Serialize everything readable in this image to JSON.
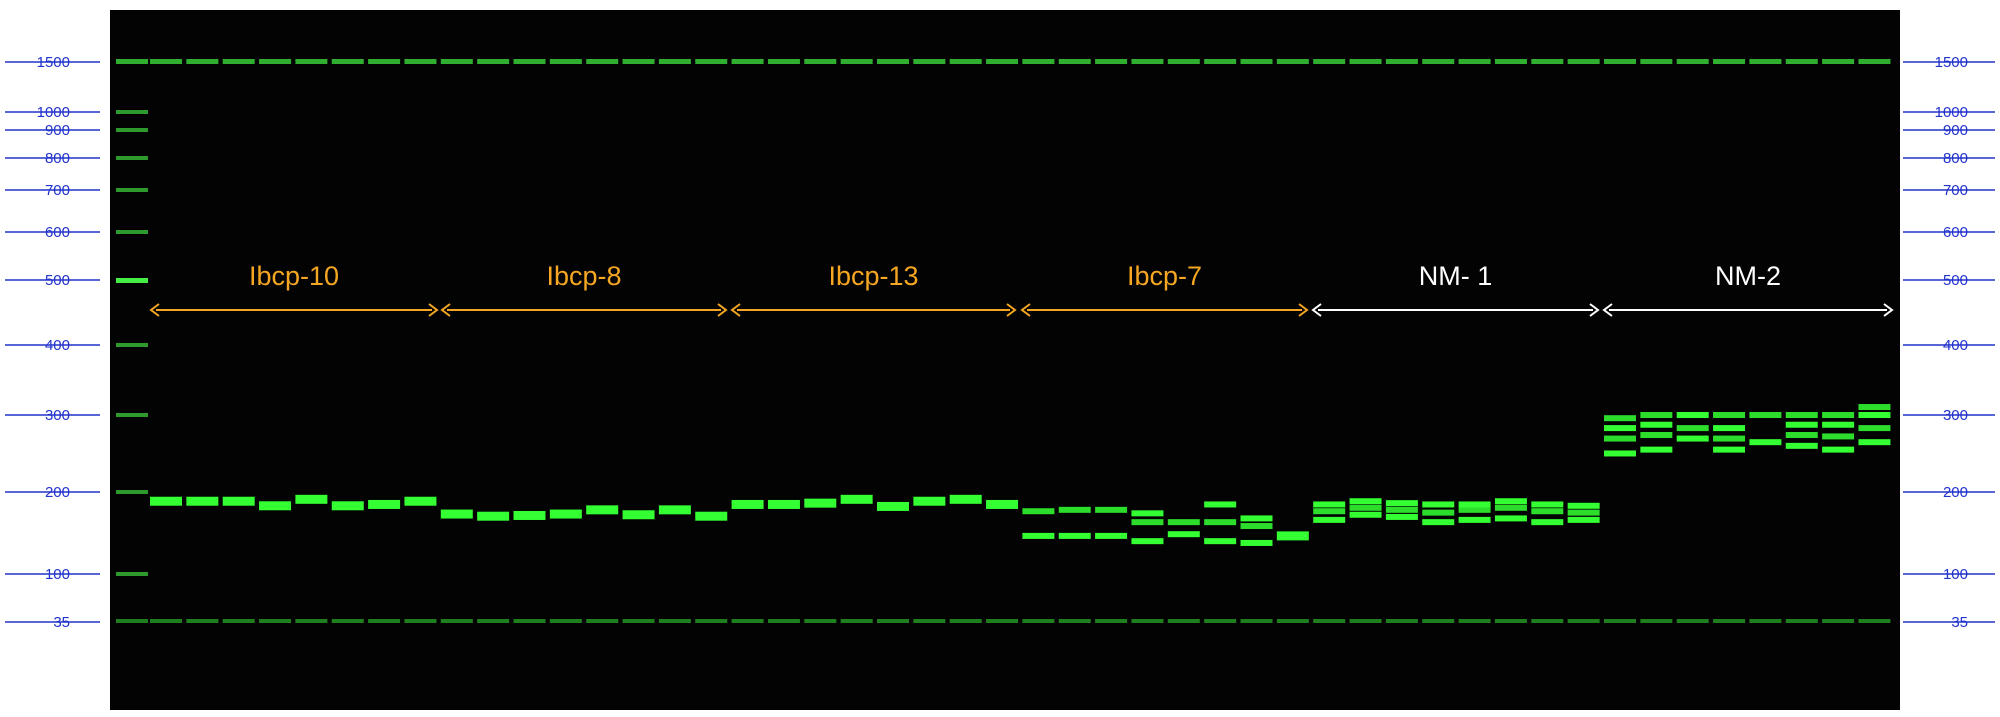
{
  "ladder": {
    "labels": [
      "1500",
      "1000",
      "900",
      "800",
      "700",
      "600",
      "500",
      "400",
      "300",
      "200",
      "100",
      "35"
    ],
    "color": "#2233cc"
  },
  "groups": [
    {
      "label": "Ibcp-10",
      "color": "#f5a623"
    },
    {
      "label": "Ibcp-8",
      "color": "#f5a623"
    },
    {
      "label": "Ibcp-13",
      "color": "#f5a623"
    },
    {
      "label": "Ibcp-7",
      "color": "#f5a623"
    },
    {
      "label": "NM- 1",
      "color": "#ffffff"
    },
    {
      "label": "NM-2",
      "color": "#ffffff"
    }
  ],
  "colors": {
    "gel_background": "#020302",
    "band": "#33ff33",
    "ladder_line": "#2233cc"
  },
  "lanes_per_group": 8,
  "samples_bp": [
    [
      [
        185
      ]
    ],
    [
      [
        185
      ]
    ],
    [
      [
        185
      ]
    ],
    [
      [
        178
      ]
    ],
    [
      [
        188
      ]
    ],
    [
      [
        178
      ]
    ],
    [
      [
        180
      ]
    ],
    [
      [
        185
      ]
    ],
    [
      [
        166
      ]
    ],
    [
      [
        163
      ]
    ],
    [
      [
        164
      ]
    ],
    [
      [
        166
      ]
    ],
    [
      [
        172
      ]
    ],
    [
      [
        165
      ]
    ],
    [
      [
        172
      ]
    ],
    [
      [
        163
      ]
    ],
    [
      [
        180
      ]
    ],
    [
      [
        180
      ]
    ],
    [
      [
        182
      ]
    ],
    [
      [
        188
      ]
    ],
    [
      [
        177
      ]
    ],
    [
      [
        185
      ]
    ],
    [
      [
        188
      ]
    ],
    [
      [
        180
      ]
    ],
    [
      [
        138
      ],
      [
        170
      ]
    ],
    [
      [
        138
      ],
      [
        172
      ]
    ],
    [
      [
        138
      ],
      [
        172
      ]
    ],
    [
      [
        132
      ],
      [
        155
      ],
      [
        167
      ]
    ],
    [
      [
        140
      ],
      [
        155
      ]
    ],
    [
      [
        132
      ],
      [
        155
      ],
      [
        180
      ]
    ],
    [
      [
        130
      ],
      [
        150
      ],
      [
        160
      ]
    ],
    [
      [
        138
      ]
    ],
    [
      [
        158
      ],
      [
        170
      ],
      [
        180
      ]
    ],
    [
      [
        165
      ],
      [
        175
      ],
      [
        185
      ]
    ],
    [
      [
        162
      ],
      [
        172
      ],
      [
        182
      ]
    ],
    [
      [
        155
      ],
      [
        168
      ],
      [
        180
      ]
    ],
    [
      [
        158
      ],
      [
        172
      ],
      [
        180
      ]
    ],
    [
      [
        160
      ],
      [
        175
      ],
      [
        185
      ]
    ],
    [
      [
        155
      ],
      [
        170
      ],
      [
        180
      ]
    ],
    [
      [
        158
      ],
      [
        168
      ],
      [
        178
      ]
    ],
    [
      [
        245
      ],
      [
        265
      ],
      [
        280
      ],
      [
        295
      ]
    ],
    [
      [
        250
      ],
      [
        270
      ],
      [
        285
      ],
      [
        300
      ]
    ],
    [
      [
        265
      ],
      [
        280
      ],
      [
        300
      ]
    ],
    [
      [
        250
      ],
      [
        265
      ],
      [
        280
      ],
      [
        300
      ]
    ],
    [
      [
        260
      ],
      [
        300
      ]
    ],
    [
      [
        255
      ],
      [
        270
      ],
      [
        285
      ],
      [
        300
      ]
    ],
    [
      [
        250
      ],
      [
        268
      ],
      [
        285
      ],
      [
        300
      ]
    ],
    [
      [
        260
      ],
      [
        280
      ],
      [
        300
      ],
      [
        310
      ]
    ]
  ]
}
